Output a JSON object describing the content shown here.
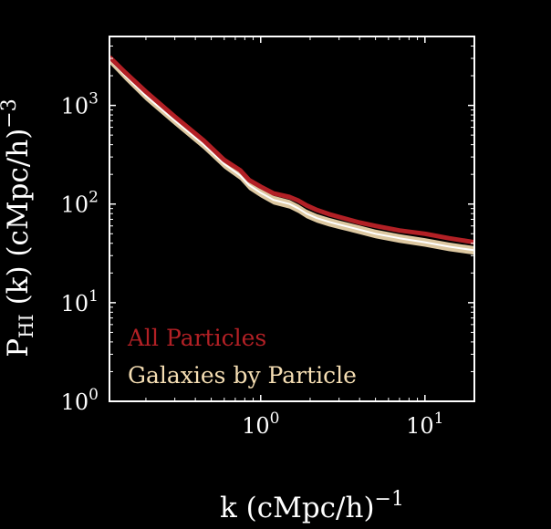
{
  "chart_data": {
    "type": "line",
    "title": "",
    "xlabel": "k (cMpc/h)",
    "xlabel_exponent": "−1",
    "ylabel_main": "P",
    "ylabel_subscript": "HI",
    "ylabel_rest": " (k) (cMpc/h)",
    "ylabel_exponent": "−3",
    "x_scale": "log",
    "y_scale": "log",
    "xlim": [
      0.12,
      20
    ],
    "ylim": [
      1,
      5000
    ],
    "x_ticks": [
      {
        "value": 1,
        "base": "10",
        "exp": "0"
      },
      {
        "value": 10,
        "base": "10",
        "exp": "1"
      }
    ],
    "y_ticks": [
      {
        "value": 1,
        "base": "10",
        "exp": "0"
      },
      {
        "value": 10,
        "base": "10",
        "exp": "1"
      },
      {
        "value": 100,
        "base": "10",
        "exp": "2"
      },
      {
        "value": 1000,
        "base": "10",
        "exp": "3"
      }
    ],
    "grid": false,
    "legend": "lower-left, text colored by series",
    "series": [
      {
        "name": "All Particles",
        "color": "#b22025",
        "x": [
          0.12,
          0.15,
          0.2,
          0.3,
          0.45,
          0.6,
          0.75,
          0.85,
          1.0,
          1.2,
          1.5,
          1.7,
          1.9,
          2.2,
          2.6,
          3.0,
          4.0,
          5.0,
          7.0,
          10.0,
          14.0,
          20.0
        ],
        "y": [
          3100,
          2150,
          1380,
          770,
          440,
          280,
          220,
          175,
          150,
          128,
          118,
          108,
          97,
          87,
          79,
          74,
          65,
          60,
          54,
          50,
          45,
          41
        ]
      },
      {
        "name": "Galaxies by Particle",
        "color": "#f5deb3",
        "x": [
          0.12,
          0.15,
          0.2,
          0.3,
          0.45,
          0.6,
          0.75,
          0.85,
          1.0,
          1.2,
          1.5,
          1.7,
          1.9,
          2.2,
          2.6,
          3.0,
          4.0,
          5.0,
          7.0,
          10.0,
          14.0,
          20.0
        ],
        "y": [
          2950,
          2000,
          1250,
          700,
          400,
          255,
          195,
          155,
          130,
          110,
          100,
          90,
          80,
          72,
          66,
          62,
          55,
          50,
          45,
          41,
          37,
          34
        ],
        "band": 0.1
      }
    ]
  }
}
